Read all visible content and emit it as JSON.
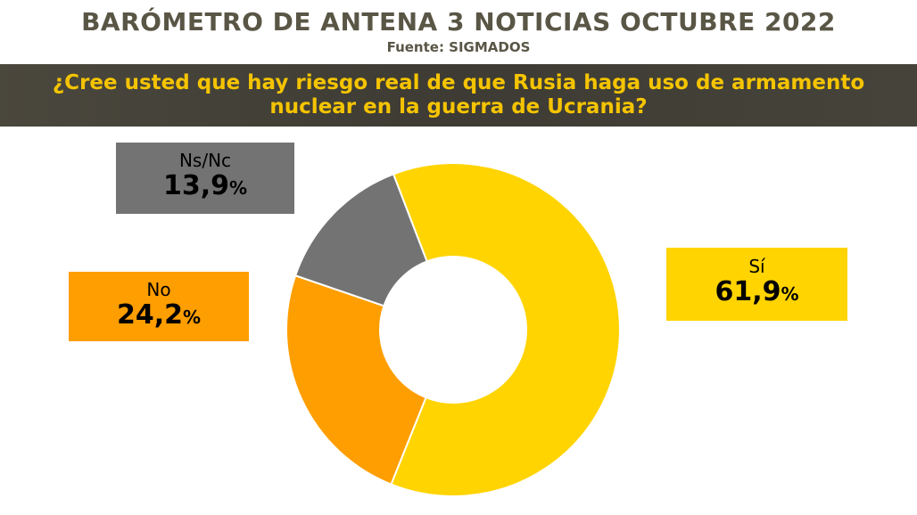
{
  "header": {
    "title": "BARÓMETRO DE ANTENA 3 NOTICIAS OCTUBRE 2022",
    "source": "Fuente: SIGMADOS"
  },
  "question": {
    "line1": "¿Cree usted que hay riesgo real de que Rusia haga uso de armamento",
    "line2": "nuclear en la guerra de Ucrania?"
  },
  "colors": {
    "si": "#ffd400",
    "no": "#ff9e00",
    "nsnc": "#737373",
    "header_text": "#5a5646",
    "band": "#403e35",
    "question_text": "#f5c400"
  },
  "chart_data": {
    "type": "pie",
    "donut": true,
    "categories": [
      "Sí",
      "No",
      "Ns/Nc"
    ],
    "values": [
      61.9,
      24.2,
      13.9
    ],
    "value_labels": [
      "61,9",
      "24,2",
      "13,9"
    ],
    "unit": "%",
    "colors": [
      "#ffd400",
      "#ff9e00",
      "#737373"
    ]
  }
}
